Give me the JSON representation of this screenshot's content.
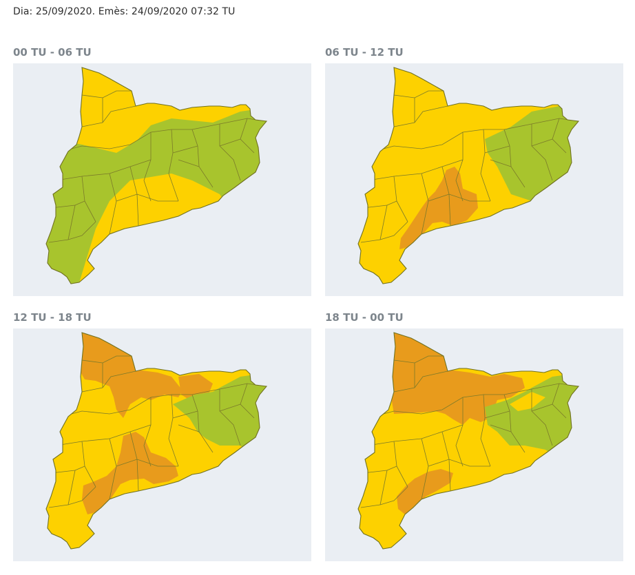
{
  "header": {
    "text": "Dia: 25/09/2020. Emès: 24/09/2020 07:32 TU"
  },
  "colors": {
    "background_map": "#eaeef3",
    "green": "#a8c42d",
    "yellow": "#fdd100",
    "orange": "#e89b1c",
    "border": "#7a7a2a"
  },
  "panels": [
    {
      "title": "00 TU - 06 TU"
    },
    {
      "title": "06 TU - 12 TU"
    },
    {
      "title": "12 TU - 18 TU"
    },
    {
      "title": "18 TU - 00 TU"
    }
  ]
}
